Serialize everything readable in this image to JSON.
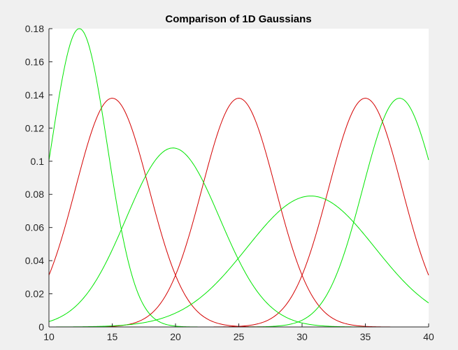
{
  "chart_data": {
    "type": "line",
    "title": "Comparison of 1D Gaussians",
    "xlabel": "",
    "ylabel": "",
    "xlim": [
      10,
      40
    ],
    "ylim": [
      0,
      0.18
    ],
    "x_ticks": [
      "10",
      "15",
      "20",
      "25",
      "30",
      "35",
      "40"
    ],
    "y_ticks": [
      "0",
      "0.02",
      "0.04",
      "0.06",
      "0.08",
      "0.1",
      "0.12",
      "0.14",
      "0.16",
      "0.18"
    ],
    "grid": false,
    "legend": "none",
    "colors": {
      "red_series": "#d40000",
      "green_series": "#00e600",
      "axes_background": "#ffffff",
      "figure_background": "#f0f0f0"
    },
    "series": [
      {
        "color": "red",
        "mean": 15,
        "std": 2.9,
        "peak": 0.138
      },
      {
        "color": "red",
        "mean": 25,
        "std": 2.9,
        "peak": 0.138
      },
      {
        "color": "red",
        "mean": 35,
        "std": 2.9,
        "peak": 0.138
      },
      {
        "color": "green",
        "mean": 12.4,
        "std": 2.22,
        "peak": 0.18
      },
      {
        "color": "green",
        "mean": 19.8,
        "std": 3.7,
        "peak": 0.108
      },
      {
        "color": "green",
        "mean": 30.7,
        "std": 5.05,
        "peak": 0.079
      },
      {
        "color": "green",
        "mean": 37.7,
        "std": 2.9,
        "peak": 0.138
      }
    ]
  }
}
